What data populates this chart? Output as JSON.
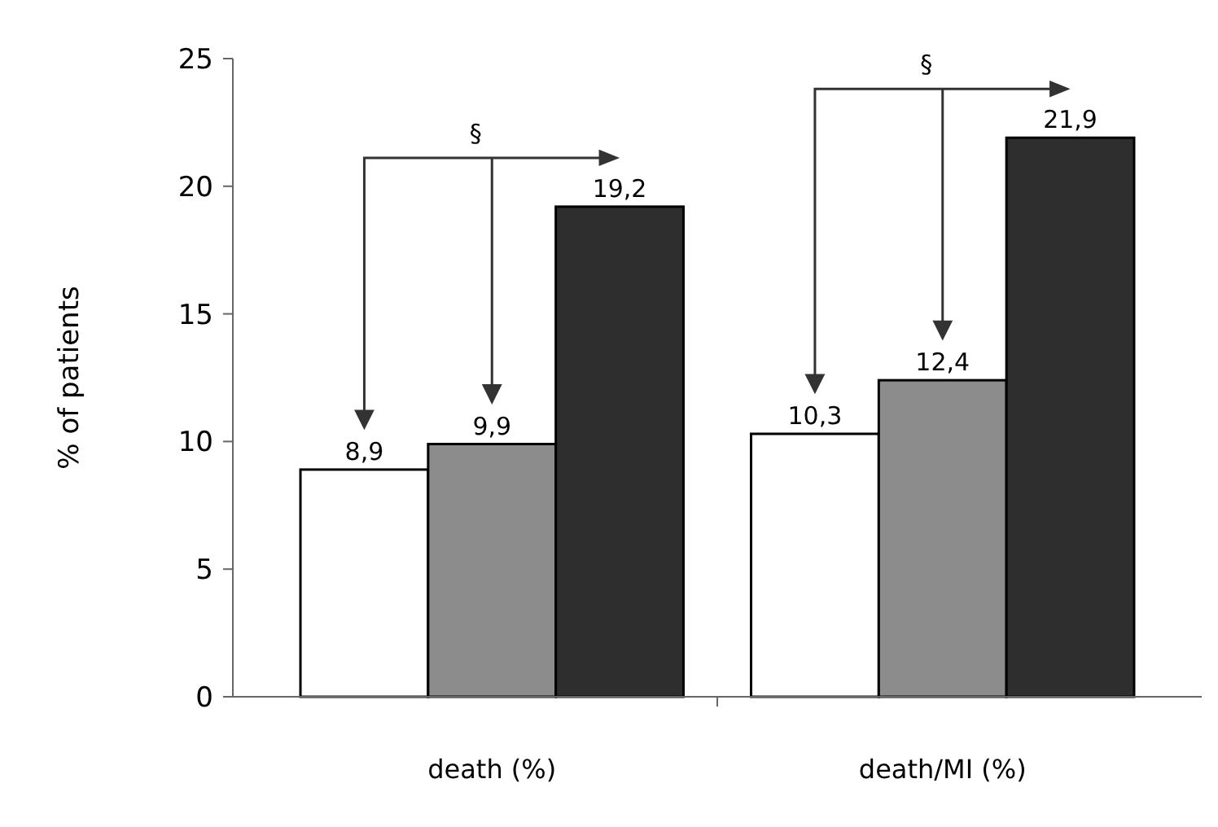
{
  "chart_data": {
    "type": "bar",
    "ylabel": "% of patients",
    "categories": [
      "death (%)",
      "death/MI (%)"
    ],
    "series": [
      {
        "color": "#ffffff",
        "values": [
          8.9,
          10.3
        ],
        "value_labels": [
          "8,9",
          "10,3"
        ]
      },
      {
        "color": "#8c8c8c",
        "values": [
          9.9,
          12.4
        ],
        "value_labels": [
          "9,9",
          "12,4"
        ]
      },
      {
        "color": "#2e2e2e",
        "values": [
          19.2,
          21.9
        ],
        "value_labels": [
          "19,2",
          "21,9"
        ]
      }
    ],
    "ylim": [
      0,
      25
    ],
    "yticks": [
      0,
      5,
      10,
      15,
      20,
      25
    ],
    "grid": false,
    "annotations": [
      "§",
      "§"
    ]
  }
}
